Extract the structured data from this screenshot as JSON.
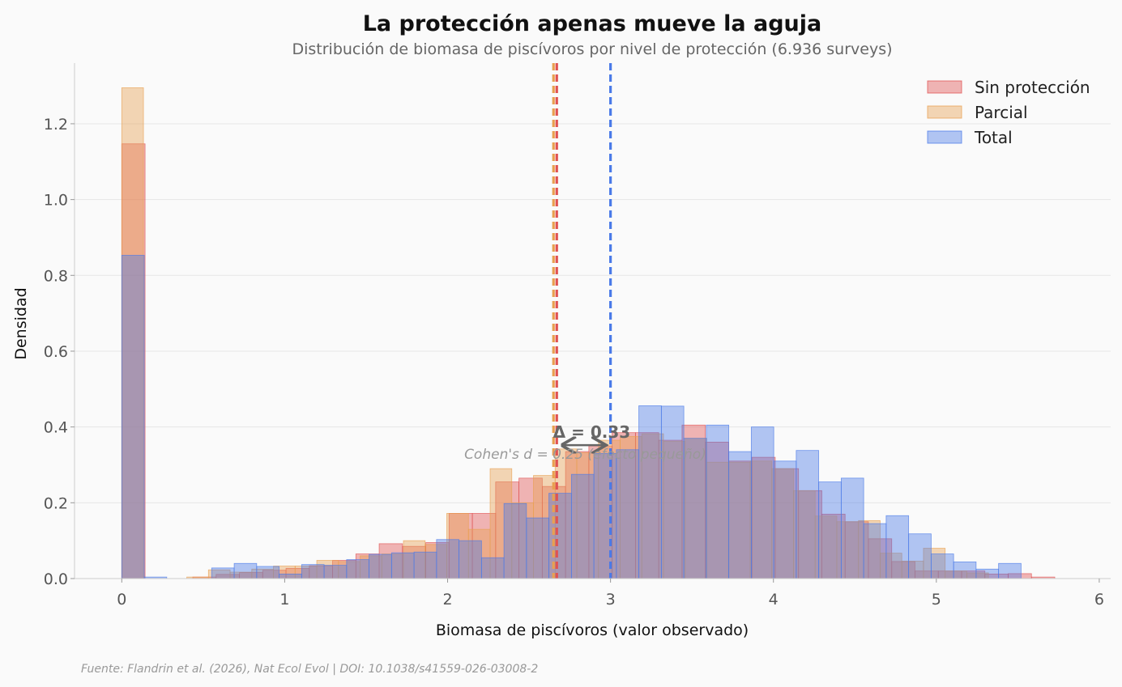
{
  "chart_data": {
    "type": "histogram",
    "title": "La protección apenas mueve la aguja",
    "subtitle": "Distribución de biomasa de piscívoros por nivel de protección (6.936 surveys)",
    "xlabel": "Biomasa de piscívoros (valor observado)",
    "ylabel": "Densidad",
    "xlim": [
      -0.29,
      6.07
    ],
    "ylim": [
      0,
      1.36
    ],
    "xticks": [
      0,
      1,
      2,
      3,
      4,
      5,
      6
    ],
    "xtick_labels": [
      "0",
      "1",
      "2",
      "3",
      "4",
      "5",
      "6"
    ],
    "yticks": [
      0.0,
      0.2,
      0.4,
      0.6,
      0.8,
      1.0,
      1.2
    ],
    "ytick_labels": [
      "0.0",
      "0.2",
      "0.4",
      "0.6",
      "0.8",
      "1.0",
      "1.2"
    ],
    "grid": "horizontal",
    "legend_position": "top-right",
    "series": [
      {
        "name": "Sin protección",
        "color": "#e05252",
        "mean": 2.67,
        "bins": [
          [
            0,
            0.143,
            1.147
          ],
          [
            0.436,
            0.579,
            0.004
          ],
          [
            0.579,
            0.722,
            0.011
          ],
          [
            0.722,
            0.865,
            0.016
          ],
          [
            0.865,
            1.008,
            0.022
          ],
          [
            1.008,
            1.151,
            0.027
          ],
          [
            1.151,
            1.294,
            0.034
          ],
          [
            1.294,
            1.437,
            0.048
          ],
          [
            1.437,
            1.58,
            0.065
          ],
          [
            1.58,
            1.723,
            0.092
          ],
          [
            1.723,
            1.866,
            0.085
          ],
          [
            1.866,
            2.009,
            0.095
          ],
          [
            2.009,
            2.152,
            0.172
          ],
          [
            2.152,
            2.295,
            0.172
          ],
          [
            2.295,
            2.438,
            0.255
          ],
          [
            2.438,
            2.581,
            0.265
          ],
          [
            2.581,
            2.724,
            0.243
          ],
          [
            2.724,
            2.867,
            0.335
          ],
          [
            2.867,
            3.01,
            0.35
          ],
          [
            3.01,
            3.153,
            0.385
          ],
          [
            3.153,
            3.296,
            0.385
          ],
          [
            3.296,
            3.439,
            0.365
          ],
          [
            3.439,
            3.582,
            0.405
          ],
          [
            3.582,
            3.725,
            0.36
          ],
          [
            3.725,
            3.868,
            0.31
          ],
          [
            3.868,
            4.011,
            0.32
          ],
          [
            4.011,
            4.154,
            0.29
          ],
          [
            4.154,
            4.297,
            0.232
          ],
          [
            4.297,
            4.44,
            0.17
          ],
          [
            4.44,
            4.583,
            0.15
          ],
          [
            4.583,
            4.726,
            0.105
          ],
          [
            4.726,
            4.869,
            0.045
          ],
          [
            4.869,
            5.012,
            0.02
          ],
          [
            5.012,
            5.155,
            0.02
          ],
          [
            5.155,
            5.298,
            0.02
          ],
          [
            5.298,
            5.441,
            0.012
          ],
          [
            5.441,
            5.584,
            0.013
          ],
          [
            5.584,
            5.727,
            0.004
          ]
        ]
      },
      {
        "name": "Parcial",
        "color": "#e8a050",
        "mean": 2.65,
        "bins": [
          [
            0,
            0.133,
            1.295
          ],
          [
            0.399,
            0.532,
            0.004
          ],
          [
            0.532,
            0.665,
            0.023
          ],
          [
            0.665,
            0.798,
            0.017
          ],
          [
            0.798,
            0.931,
            0.025
          ],
          [
            0.931,
            1.064,
            0.033
          ],
          [
            1.064,
            1.197,
            0.033
          ],
          [
            1.197,
            1.33,
            0.048
          ],
          [
            1.33,
            1.463,
            0.045
          ],
          [
            1.463,
            1.596,
            0.06
          ],
          [
            1.596,
            1.729,
            0.065
          ],
          [
            1.729,
            1.862,
            0.1
          ],
          [
            1.862,
            1.995,
            0.09
          ],
          [
            1.995,
            2.128,
            0.172
          ],
          [
            2.128,
            2.261,
            0.13
          ],
          [
            2.261,
            2.394,
            0.29
          ],
          [
            2.394,
            2.527,
            0.2
          ],
          [
            2.527,
            2.66,
            0.272
          ],
          [
            2.66,
            2.793,
            0.342
          ],
          [
            2.793,
            2.926,
            0.332
          ],
          [
            2.926,
            3.059,
            0.365
          ],
          [
            3.059,
            3.192,
            0.375
          ],
          [
            3.192,
            3.325,
            0.382
          ],
          [
            3.325,
            3.458,
            0.362
          ],
          [
            3.458,
            3.591,
            0.37
          ],
          [
            3.591,
            3.724,
            0.307
          ],
          [
            3.724,
            3.857,
            0.307
          ],
          [
            3.857,
            3.99,
            0.31
          ],
          [
            3.99,
            4.123,
            0.29
          ],
          [
            4.123,
            4.256,
            0.232
          ],
          [
            4.256,
            4.389,
            0.165
          ],
          [
            4.389,
            4.522,
            0.15
          ],
          [
            4.522,
            4.655,
            0.153
          ],
          [
            4.655,
            4.788,
            0.067
          ],
          [
            4.788,
            4.921,
            0.046
          ],
          [
            4.921,
            5.054,
            0.08
          ],
          [
            5.054,
            5.187,
            0.02
          ],
          [
            5.187,
            5.32,
            0.015
          ]
        ]
      },
      {
        "name": "Total",
        "color": "#4a7ae8",
        "mean": 3.0,
        "bins": [
          [
            0,
            0.138,
            0.853
          ],
          [
            0.138,
            0.276,
            0.004
          ],
          [
            0.552,
            0.69,
            0.028
          ],
          [
            0.69,
            0.828,
            0.04
          ],
          [
            0.828,
            0.966,
            0.032
          ],
          [
            0.966,
            1.104,
            0.012
          ],
          [
            1.104,
            1.242,
            0.037
          ],
          [
            1.242,
            1.38,
            0.035
          ],
          [
            1.38,
            1.518,
            0.05
          ],
          [
            1.518,
            1.656,
            0.064
          ],
          [
            1.656,
            1.794,
            0.068
          ],
          [
            1.794,
            1.932,
            0.07
          ],
          [
            1.932,
            2.07,
            0.103
          ],
          [
            2.07,
            2.208,
            0.1
          ],
          [
            2.208,
            2.346,
            0.055
          ],
          [
            2.346,
            2.484,
            0.198
          ],
          [
            2.484,
            2.622,
            0.16
          ],
          [
            2.622,
            2.76,
            0.225
          ],
          [
            2.76,
            2.898,
            0.275
          ],
          [
            2.898,
            3.036,
            0.33
          ],
          [
            3.036,
            3.174,
            0.34
          ],
          [
            3.174,
            3.312,
            0.456
          ],
          [
            3.312,
            3.45,
            0.455
          ],
          [
            3.45,
            3.588,
            0.37
          ],
          [
            3.588,
            3.726,
            0.405
          ],
          [
            3.726,
            3.864,
            0.335
          ],
          [
            3.864,
            4.002,
            0.4
          ],
          [
            4.002,
            4.14,
            0.31
          ],
          [
            4.14,
            4.278,
            0.338
          ],
          [
            4.278,
            4.416,
            0.255
          ],
          [
            4.416,
            4.554,
            0.265
          ],
          [
            4.554,
            4.692,
            0.145
          ],
          [
            4.692,
            4.83,
            0.166
          ],
          [
            4.83,
            4.968,
            0.118
          ],
          [
            4.968,
            5.106,
            0.065
          ],
          [
            5.106,
            5.244,
            0.044
          ],
          [
            5.244,
            5.382,
            0.025
          ],
          [
            5.382,
            5.52,
            0.04
          ]
        ]
      }
    ],
    "annotations": {
      "delta": "Δ = 0.33",
      "cohen": "Cohen's d = 0.25 (efecto pequeño)",
      "arrow_from": 2.67,
      "arrow_to": 3.0,
      "arrow_y": 0.352
    },
    "source": "Fuente: Flandrin et al. (2026), Nat Ecol Evol | DOI: 10.1038/s41559-026-03008-2"
  }
}
